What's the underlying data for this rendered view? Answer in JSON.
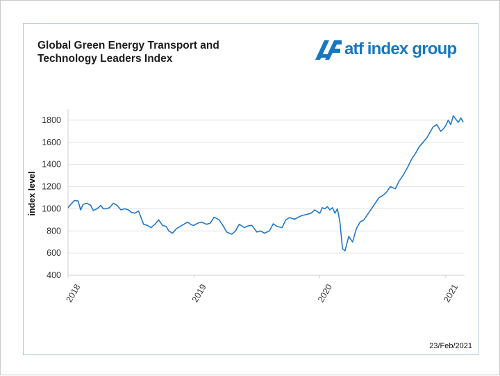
{
  "title_line1": "Global Green Energy Transport and",
  "title_line2": "Technology Leaders Index",
  "logo": {
    "text": "atf index group",
    "color": "#1778bf"
  },
  "date_label": "23/Feb/2021",
  "chart_data": {
    "type": "line",
    "title": "Global Green Energy Transport and Technology Leaders Index",
    "ylabel": "index level",
    "xlabel": "",
    "ylim": [
      400,
      1900
    ],
    "yticks": [
      400,
      600,
      800,
      1000,
      1200,
      1400,
      1600,
      1800
    ],
    "xlim": [
      2018.0,
      2021.15
    ],
    "xticks": [
      {
        "value": 2018,
        "label": "2018"
      },
      {
        "value": 2019,
        "label": "2019"
      },
      {
        "value": 2020,
        "label": "2020"
      },
      {
        "value": 2021,
        "label": "2021"
      }
    ],
    "grid": "horizontal",
    "color": "#1f78c8",
    "series": [
      {
        "x": [
          2018.0,
          2018.03,
          2018.05,
          2018.08,
          2018.1,
          2018.12,
          2018.15,
          2018.18,
          2018.2,
          2018.23,
          2018.26,
          2018.28,
          2018.3,
          2018.33,
          2018.36,
          2018.39,
          2018.42,
          2018.45,
          2018.48,
          2018.5,
          2018.53,
          2018.56,
          2018.6,
          2018.63,
          2018.66,
          2018.69,
          2018.72,
          2018.75,
          2018.78,
          2018.8,
          2018.83,
          2018.86,
          2018.89,
          2018.92,
          2018.95,
          2018.98,
          2019.0,
          2019.03,
          2019.06,
          2019.1,
          2019.13,
          2019.16,
          2019.2,
          2019.23,
          2019.26,
          2019.3,
          2019.33,
          2019.36,
          2019.4,
          2019.43,
          2019.46,
          2019.5,
          2019.53,
          2019.56,
          2019.6,
          2019.63,
          2019.66,
          2019.7,
          2019.73,
          2019.76,
          2019.8,
          2019.83,
          2019.86,
          2019.9,
          2019.93,
          2019.96,
          2020.0,
          2020.02,
          2020.04,
          2020.06,
          2020.08,
          2020.1,
          2020.12,
          2020.14,
          2020.16,
          2020.18,
          2020.2,
          2020.23,
          2020.26,
          2020.29,
          2020.32,
          2020.35,
          2020.38,
          2020.41,
          2020.44,
          2020.47,
          2020.5,
          2020.53,
          2020.56,
          2020.6,
          2020.63,
          2020.66,
          2020.7,
          2020.73,
          2020.76,
          2020.79,
          2020.82,
          2020.85,
          2020.88,
          2020.9,
          2020.93,
          2020.96,
          2020.98,
          2021.0,
          2021.02,
          2021.04,
          2021.06,
          2021.08,
          2021.1,
          2021.12,
          2021.14
        ],
        "y": [
          1010,
          1050,
          1075,
          1070,
          990,
          1040,
          1050,
          1030,
          985,
          1000,
          1030,
          1000,
          1000,
          1010,
          1050,
          1030,
          990,
          1000,
          990,
          970,
          960,
          980,
          860,
          850,
          830,
          860,
          900,
          850,
          840,
          800,
          780,
          820,
          840,
          860,
          880,
          855,
          850,
          870,
          880,
          860,
          870,
          925,
          900,
          850,
          790,
          770,
          800,
          860,
          830,
          845,
          850,
          790,
          800,
          780,
          800,
          865,
          840,
          830,
          900,
          920,
          905,
          925,
          940,
          950,
          960,
          990,
          960,
          1010,
          1000,
          1020,
          990,
          1010,
          960,
          1000,
          880,
          640,
          620,
          750,
          700,
          820,
          880,
          900,
          950,
          1000,
          1050,
          1100,
          1120,
          1150,
          1200,
          1180,
          1250,
          1300,
          1380,
          1450,
          1500,
          1560,
          1600,
          1640,
          1700,
          1740,
          1760,
          1700,
          1720,
          1750,
          1800,
          1760,
          1840,
          1810,
          1780,
          1820,
          1780
        ]
      }
    ]
  }
}
